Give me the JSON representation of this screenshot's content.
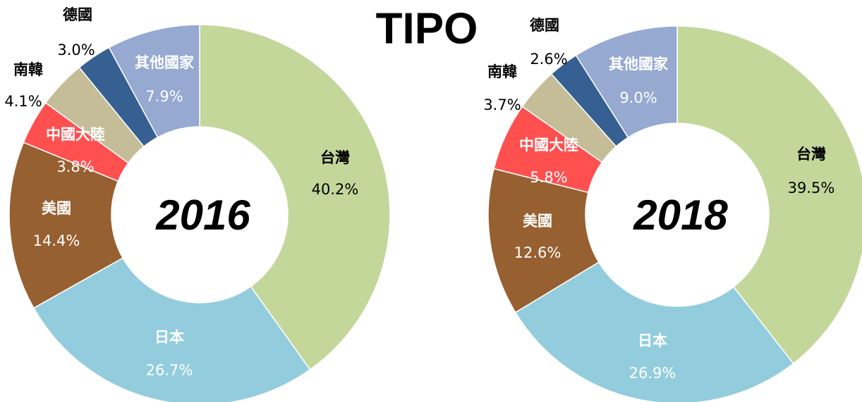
{
  "title": "TIPO",
  "chart_data": [
    {
      "type": "pie",
      "center_label": "2016",
      "categories": [
        "台灣",
        "日本",
        "美國",
        "中國大陸",
        "南韓",
        "德國",
        "其他國家"
      ],
      "values": [
        40.2,
        26.7,
        14.4,
        3.8,
        4.1,
        3.0,
        7.9
      ],
      "value_labels": [
        "40.2%",
        "26.7%",
        "14.4%",
        "3.8%",
        "4.1%",
        "3.0%",
        "7.9%"
      ],
      "colors": [
        "#c4d79b",
        "#93cddd",
        "#976031",
        "#ff5050",
        "#c4bd97",
        "#366092",
        "#95a9d1"
      ]
    },
    {
      "type": "pie",
      "center_label": "2018",
      "categories": [
        "台灣",
        "日本",
        "美國",
        "中國大陸",
        "南韓",
        "德國",
        "其他國家"
      ],
      "values": [
        39.5,
        26.9,
        12.6,
        5.8,
        3.7,
        2.6,
        9.0
      ],
      "value_labels": [
        "39.5%",
        "26.9%",
        "12.6%",
        "5.8%",
        "3.7%",
        "2.6%",
        "9.0%"
      ],
      "colors": [
        "#c4d79b",
        "#93cddd",
        "#976031",
        "#ff5050",
        "#c4bd97",
        "#366092",
        "#95a9d1"
      ]
    }
  ]
}
